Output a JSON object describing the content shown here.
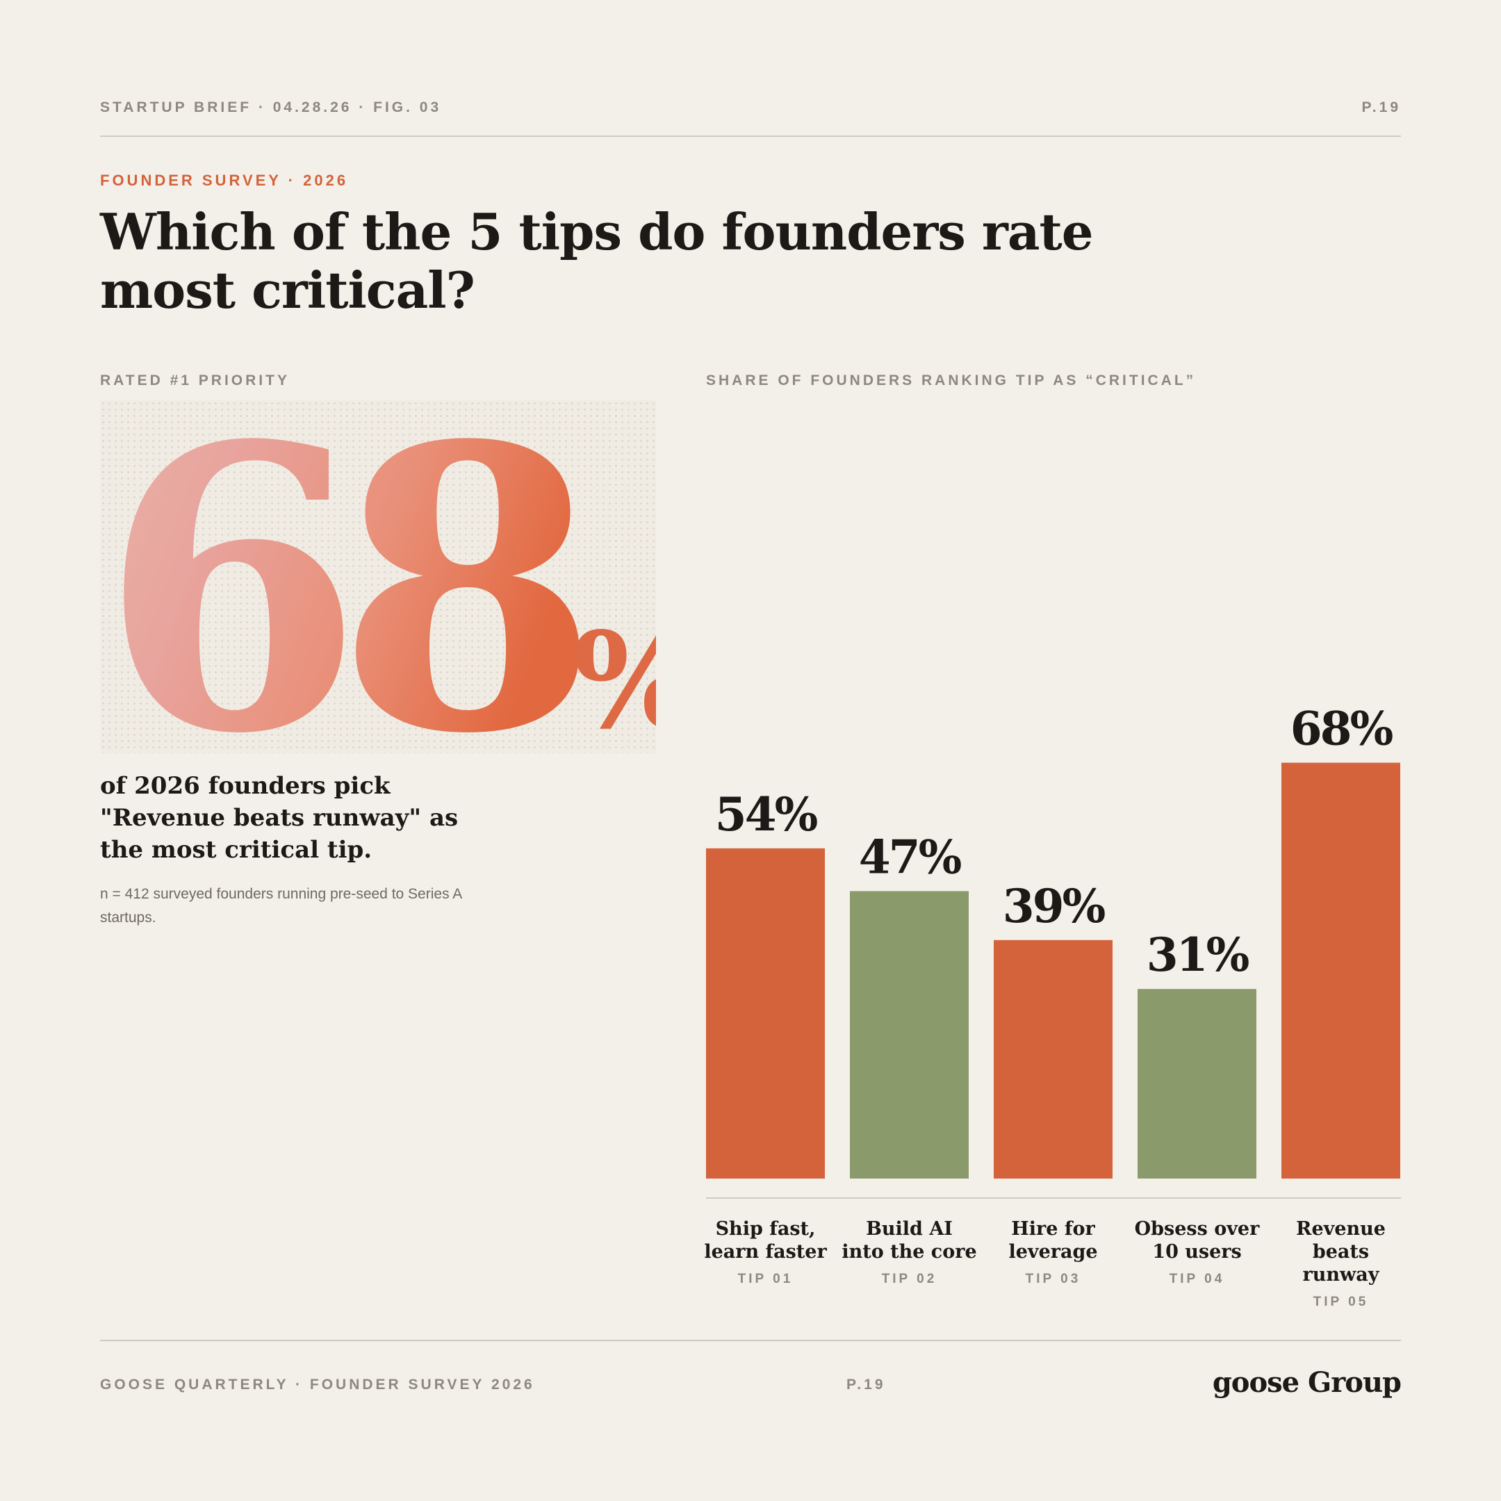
{
  "header": {
    "left": "STARTUP BRIEF · 04.28.26 · FIG. 03",
    "right": "P.19"
  },
  "eyebrow": "FOUNDER SURVEY · 2026",
  "title": "Which of the 5 tips do founders rate most critical?",
  "highlight": {
    "label": "RATED #1 PRIORITY",
    "number": "68",
    "unit": "%",
    "lead": "of 2026 founders pick \"Revenue beats runway\" as the most critical tip.",
    "note": "n = 412 surveyed founders running pre-seed to Series A startups."
  },
  "colors": {
    "accent": "#d4623a",
    "secondary": "#8b9a6b",
    "background": "#f3f0e9",
    "ink": "#1c1a17",
    "muted": "#8d8881"
  },
  "chart_data": {
    "type": "bar",
    "title": "SHARE OF FOUNDERS RANKING TIP AS “CRITICAL”",
    "categories": [
      "Ship fast, learn faster",
      "Build AI into the core",
      "Hire for leverage",
      "Obsess over 10 users",
      "Revenue beats runway"
    ],
    "category_lines": [
      [
        "Ship fast,",
        "learn faster"
      ],
      [
        "Build AI",
        "into the core"
      ],
      [
        "Hire for",
        "leverage"
      ],
      [
        "Obsess over",
        "10 users"
      ],
      [
        "Revenue",
        "beats",
        "runway"
      ]
    ],
    "tip_ids": [
      "TIP 01",
      "TIP 02",
      "TIP 03",
      "TIP 04",
      "TIP 05"
    ],
    "values": [
      54,
      47,
      39,
      31,
      68
    ],
    "value_labels": [
      "54%",
      "47%",
      "39%",
      "31%",
      "68%"
    ],
    "bar_colors": [
      "#d4623a",
      "#8b9a6b",
      "#d4623a",
      "#8b9a6b",
      "#d4623a"
    ],
    "ylim": [
      0,
      100
    ],
    "xlabel": "",
    "ylabel": "",
    "grid": false,
    "legend": "none"
  },
  "footer": {
    "left": "GOOSE QUARTERLY · FOUNDER SURVEY 2026",
    "page": "P.19",
    "brand": "goose Group"
  }
}
